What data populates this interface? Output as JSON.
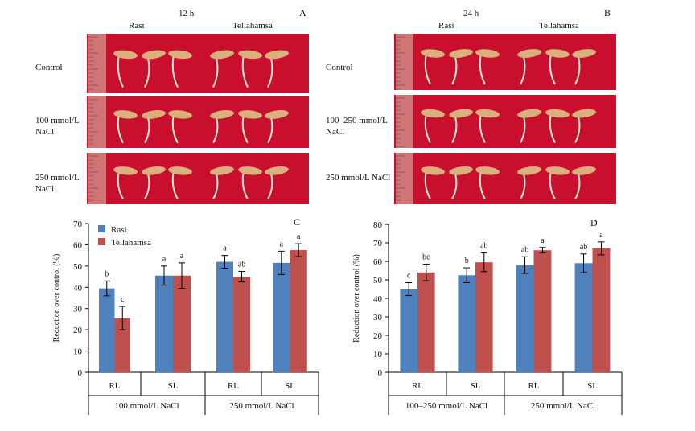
{
  "photos": {
    "A": {
      "letter": "A",
      "time": "12 h",
      "cultivar1": "Rasi",
      "cultivar2": "Tellahamsa"
    },
    "B": {
      "letter": "B",
      "time": "24 h",
      "cultivar1": "Rasi",
      "cultivar2": "Tellahamsa"
    },
    "row_labels_A": [
      "Control",
      "100 mmol/L NaCl",
      "250 mmol/L NaCl"
    ],
    "row_labels_B": [
      "Control",
      "100–250 mmol/L NaCl",
      "250 mmol/L NaCl"
    ]
  },
  "colors": {
    "rasi": "#4f81bd",
    "tellahamsa": "#c0504d",
    "photo_bg": "#c8102e"
  },
  "chart_data": [
    {
      "panel": "C",
      "type": "bar",
      "ylabel": "Reduction over control (%)",
      "ylim": [
        0,
        70
      ],
      "yticks": [
        0,
        10,
        20,
        30,
        40,
        50,
        60,
        70
      ],
      "legend": [
        "Rasi",
        "Tellahamsa"
      ],
      "legend_position": "top-left",
      "categories": [
        "RL",
        "SL",
        "RL",
        "SL"
      ],
      "groups": [
        "100 mmol/L NaCl",
        "250 mmol/L NaCl"
      ],
      "series": [
        {
          "name": "Rasi",
          "values": [
            39.5,
            45.5,
            52,
            51.5
          ],
          "errors": [
            3.5,
            4.5,
            3,
            5.5
          ],
          "labels": [
            "b",
            "a",
            "a",
            "a"
          ]
        },
        {
          "name": "Tellahamsa",
          "values": [
            25.5,
            45.5,
            45,
            57.5
          ],
          "errors": [
            5.5,
            6,
            2.5,
            3
          ],
          "labels": [
            "c",
            "a",
            "ab",
            "a"
          ]
        }
      ]
    },
    {
      "panel": "D",
      "type": "bar",
      "ylabel": "Reduction over control (%)",
      "ylim": [
        0,
        80
      ],
      "yticks": [
        0,
        10,
        20,
        30,
        40,
        50,
        60,
        70,
        80
      ],
      "categories": [
        "RL",
        "SL",
        "RL",
        "SL"
      ],
      "groups": [
        "100–250 mmol/L NaCl",
        "250 mmol/L NaCl"
      ],
      "series": [
        {
          "name": "Rasi",
          "values": [
            45,
            52.5,
            58,
            59
          ],
          "errors": [
            3.5,
            4,
            4.5,
            5
          ],
          "labels": [
            "c",
            "b",
            "ab",
            "ab"
          ]
        },
        {
          "name": "Tellahamsa",
          "values": [
            54,
            59.5,
            66,
            67
          ],
          "errors": [
            4.5,
            5,
            1.5,
            3.5
          ],
          "labels": [
            "bc",
            "ab",
            "a",
            "a"
          ]
        }
      ]
    }
  ]
}
